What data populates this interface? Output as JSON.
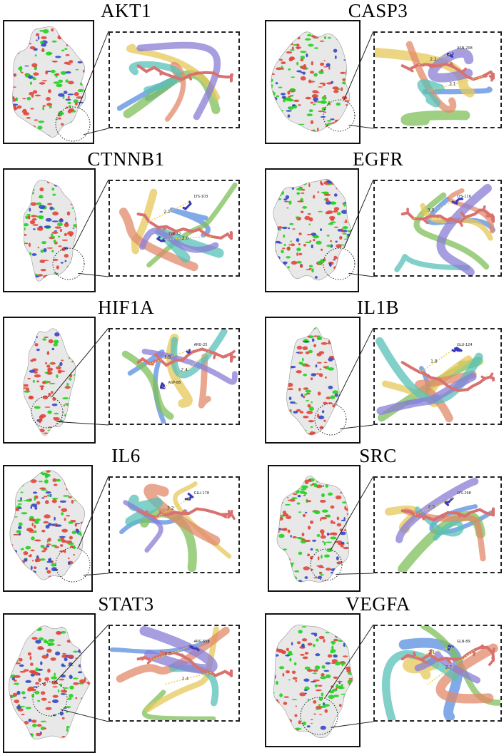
{
  "colors": {
    "surface_base": "#e8e8e8",
    "surface_red": "#e0453a",
    "surface_green": "#22d11e",
    "surface_blue": "#3248c8",
    "ligand": "#d9716f",
    "residue": "#3a3ab8",
    "hbond": "#e6d23c"
  },
  "panels": [
    {
      "title": "AKT1",
      "labels": [],
      "distances": []
    },
    {
      "title": "CASP3",
      "labels": [
        "ASN-208"
      ],
      "distances": [
        "2.2",
        "2.1"
      ]
    },
    {
      "title": "CTNNB1",
      "labels": [
        "LYS-103",
        "TYR-32"
      ],
      "distances": [
        "2.1",
        "2.0"
      ]
    },
    {
      "title": "EGFR",
      "labels": [
        "LYS-116"
      ],
      "distances": [
        "3.0"
      ]
    },
    {
      "title": "HIF1A",
      "labels": [
        "ARG-25",
        "ASP-88"
      ],
      "distances": [
        "1.9",
        "2.4"
      ]
    },
    {
      "title": "IL1B",
      "labels": [
        "GLU-124"
      ],
      "distances": [
        "1.8"
      ]
    },
    {
      "title": "IL6",
      "labels": [
        "GLU-178"
      ],
      "distances": [
        "3.2"
      ]
    },
    {
      "title": "SRC",
      "labels": [
        "LYS-298"
      ],
      "distances": [
        "2.3"
      ]
    },
    {
      "title": "STAT3",
      "labels": [
        "ARG-518"
      ],
      "distances": [
        "2.5",
        "2.4"
      ]
    },
    {
      "title": "VEGFA",
      "labels": [
        "GLN-89"
      ],
      "distances": [
        "2.1",
        "2.7"
      ]
    }
  ]
}
